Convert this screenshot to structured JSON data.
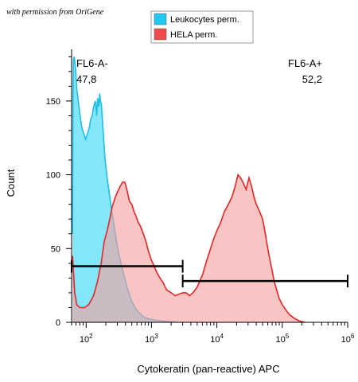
{
  "credit": "with permission from OriGene",
  "chart_data": {
    "type": "area",
    "xlabel": "Cytokeratin (pan-reactive) APC",
    "ylabel": "Count",
    "xscale": "log",
    "xlim": [
      60,
      1000000
    ],
    "ylim": [
      0,
      185
    ],
    "y_ticks": [
      0,
      50,
      100,
      150
    ],
    "x_ticks": [
      {
        "value": 100,
        "base": "10",
        "exp": "2"
      },
      {
        "value": 1000,
        "base": "10",
        "exp": "3"
      },
      {
        "value": 10000,
        "base": "10",
        "exp": "4"
      },
      {
        "value": 100000,
        "base": "10",
        "exp": "5"
      },
      {
        "value": 1000000,
        "base": "10",
        "exp": "6"
      }
    ],
    "legend": {
      "position": "top",
      "items": [
        {
          "label": "Leukocytes perm.",
          "color": "#1ec8ee"
        },
        {
          "label": "HELA perm.",
          "color": "#ee4b4b"
        }
      ]
    },
    "series": [
      {
        "name": "Leukocytes perm.",
        "fill": "#6fe3f8",
        "stroke": "#22bde8",
        "points": [
          [
            62,
            60
          ],
          [
            63,
            150
          ],
          [
            64,
            178
          ],
          [
            66,
            180
          ],
          [
            69,
            172
          ],
          [
            72,
            158
          ],
          [
            76,
            150
          ],
          [
            81,
            140
          ],
          [
            86,
            132
          ],
          [
            92,
            128
          ],
          [
            98,
            124
          ],
          [
            105,
            128
          ],
          [
            112,
            132
          ],
          [
            118,
            138
          ],
          [
            124,
            140
          ],
          [
            129,
            145
          ],
          [
            134,
            148
          ],
          [
            139,
            150
          ],
          [
            145,
            140
          ],
          [
            150,
            152
          ],
          [
            156,
            146
          ],
          [
            161,
            155
          ],
          [
            166,
            150
          ],
          [
            171,
            148
          ],
          [
            176,
            140
          ],
          [
            185,
            125
          ],
          [
            195,
            110
          ],
          [
            210,
            98
          ],
          [
            230,
            85
          ],
          [
            250,
            74
          ],
          [
            280,
            60
          ],
          [
            310,
            48
          ],
          [
            350,
            38
          ],
          [
            400,
            28
          ],
          [
            450,
            20
          ],
          [
            500,
            14
          ],
          [
            600,
            8
          ],
          [
            700,
            5
          ],
          [
            800,
            3
          ],
          [
            1000,
            2
          ],
          [
            1300,
            1
          ],
          [
            1800,
            0.5
          ],
          [
            2500,
            0
          ]
        ]
      },
      {
        "name": "HELA perm.",
        "fill": "#f6a0a0",
        "stroke": "#e52626",
        "points": [
          [
            62,
            45
          ],
          [
            64,
            35
          ],
          [
            67,
            20
          ],
          [
            72,
            12
          ],
          [
            80,
            10
          ],
          [
            95,
            10
          ],
          [
            110,
            12
          ],
          [
            130,
            18
          ],
          [
            150,
            28
          ],
          [
            170,
            40
          ],
          [
            190,
            55
          ],
          [
            210,
            62
          ],
          [
            230,
            70
          ],
          [
            250,
            78
          ],
          [
            275,
            84
          ],
          [
            300,
            88
          ],
          [
            330,
            92
          ],
          [
            360,
            95
          ],
          [
            390,
            95
          ],
          [
            420,
            90
          ],
          [
            460,
            82
          ],
          [
            500,
            80
          ],
          [
            540,
            75
          ],
          [
            580,
            72
          ],
          [
            620,
            68
          ],
          [
            680,
            65
          ],
          [
            750,
            60
          ],
          [
            820,
            55
          ],
          [
            900,
            48
          ],
          [
            1000,
            42
          ],
          [
            1100,
            38
          ],
          [
            1200,
            34
          ],
          [
            1350,
            30
          ],
          [
            1500,
            27
          ],
          [
            1700,
            22
          ],
          [
            2000,
            20
          ],
          [
            2300,
            18
          ],
          [
            2600,
            19
          ],
          [
            3000,
            20
          ],
          [
            3400,
            20
          ],
          [
            3800,
            18
          ],
          [
            4300,
            20
          ],
          [
            5000,
            24
          ],
          [
            6000,
            32
          ],
          [
            7000,
            42
          ],
          [
            8000,
            50
          ],
          [
            9000,
            57
          ],
          [
            10000,
            62
          ],
          [
            11500,
            68
          ],
          [
            13000,
            75
          ],
          [
            15000,
            80
          ],
          [
            17000,
            85
          ],
          [
            19000,
            92
          ],
          [
            21000,
            100
          ],
          [
            23000,
            98
          ],
          [
            25000,
            95
          ],
          [
            28000,
            90
          ],
          [
            31000,
            98
          ],
          [
            34000,
            92
          ],
          [
            37000,
            85
          ],
          [
            40000,
            80
          ],
          [
            45000,
            75
          ],
          [
            50000,
            70
          ],
          [
            55000,
            60
          ],
          [
            60000,
            50
          ],
          [
            65000,
            42
          ],
          [
            70000,
            35
          ],
          [
            75000,
            28
          ],
          [
            82000,
            22
          ],
          [
            90000,
            16
          ],
          [
            100000,
            12
          ],
          [
            115000,
            8
          ],
          [
            130000,
            5
          ],
          [
            150000,
            3
          ],
          [
            180000,
            1
          ],
          [
            220000,
            0
          ]
        ]
      }
    ],
    "gates": [
      {
        "label": "FL6-A-",
        "percent": "47,8",
        "x_start": 60,
        "x_end": 3000,
        "y": 38
      },
      {
        "label": "FL6-A+",
        "percent": "52,2",
        "x_start": 3000,
        "x_end": 1000000,
        "y": 28
      }
    ]
  }
}
